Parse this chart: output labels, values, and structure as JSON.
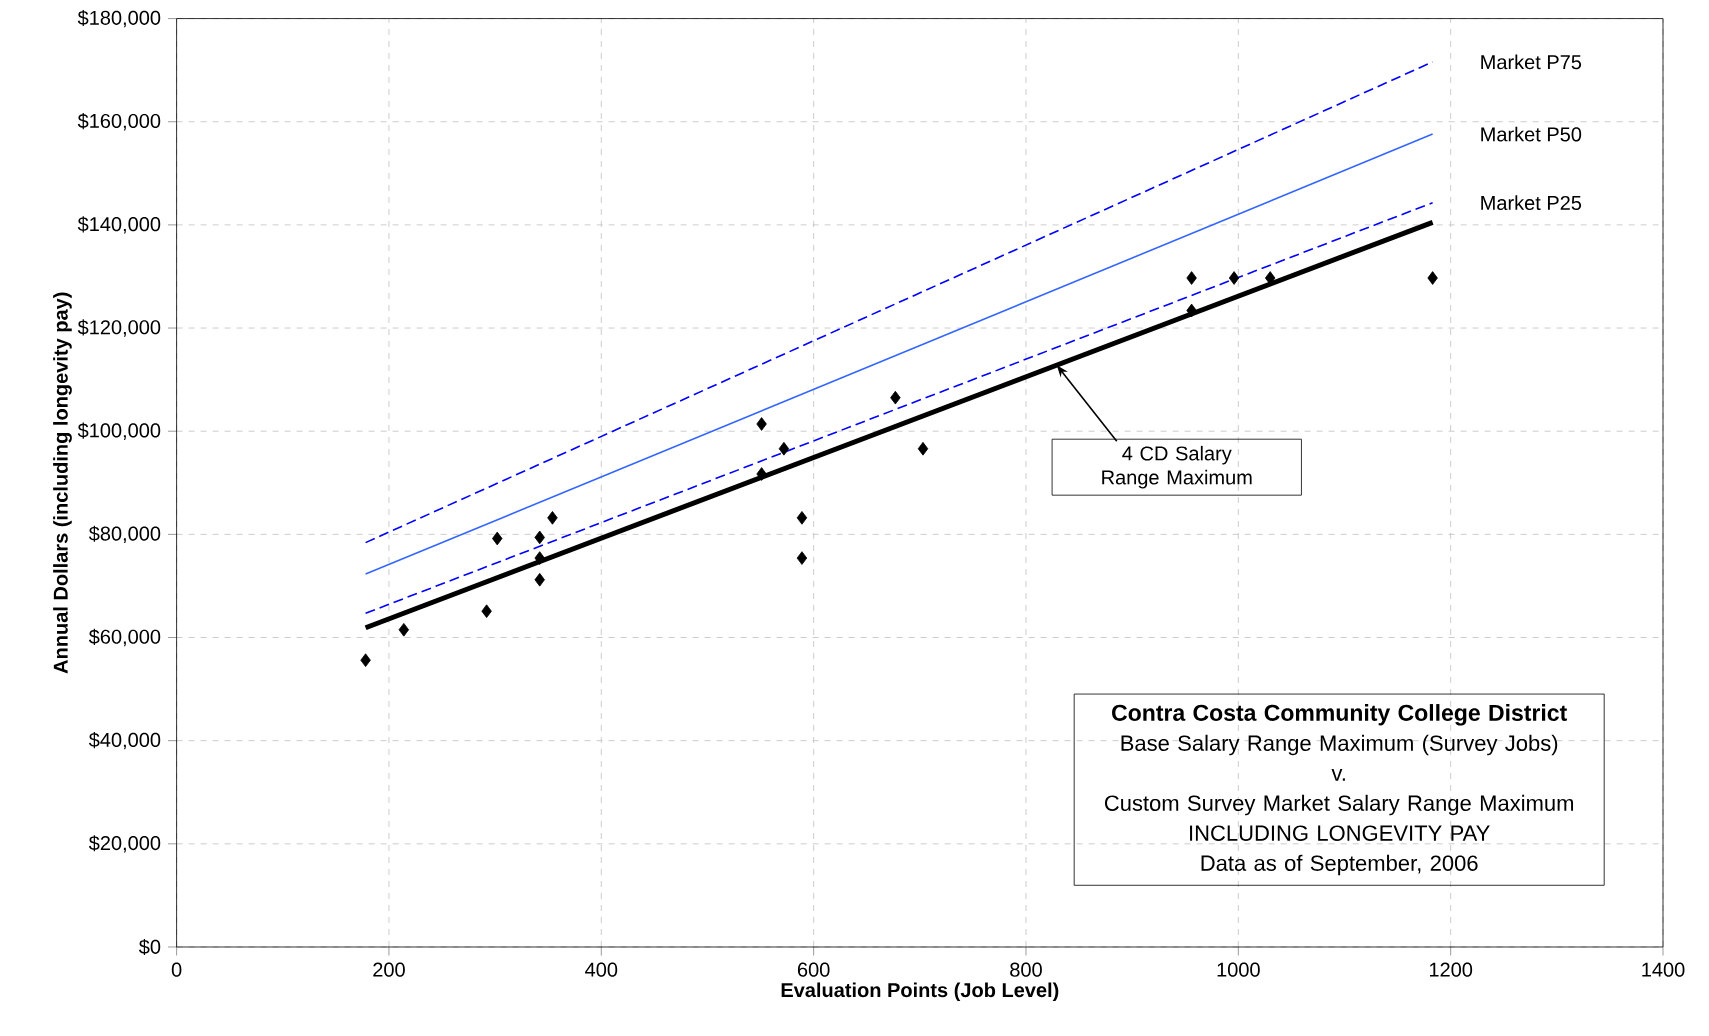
{
  "chart_data": {
    "type": "scatter",
    "title": "Contra Costa Community College District",
    "subtitle": "Base Salary Range Maximum (Survey Jobs)",
    "xlabel": "Evaluation Points (Job Level)",
    "ylabel": "Annual Dollars (including longevity pay)",
    "xlim": [
      0,
      1400
    ],
    "xticks": [
      0,
      200,
      400,
      600,
      800,
      1000,
      1200,
      1400
    ],
    "ylim": [
      0,
      180000
    ],
    "yticks": [
      {
        "value": 0,
        "label": "$0"
      },
      {
        "value": 20000,
        "label": "$20,000"
      },
      {
        "value": 40000,
        "label": "$40,000"
      },
      {
        "value": 60000,
        "label": "$60,000"
      },
      {
        "value": 80000,
        "label": "$80,000"
      },
      {
        "value": 100000,
        "label": "$100,000"
      },
      {
        "value": 120000,
        "label": "$120,000"
      },
      {
        "value": 140000,
        "label": "$140,000"
      },
      {
        "value": 160000,
        "label": "$160,000"
      },
      {
        "value": 180000,
        "label": "$180,000"
      }
    ],
    "grid": true,
    "series": [
      {
        "type": "line",
        "name": "Market P75",
        "color": "#0000ff",
        "line_style": "dashed",
        "marker": "none",
        "x": [
          178,
          1183
        ],
        "values": [
          78400,
          171600
        ]
      },
      {
        "type": "line",
        "name": "Market P50",
        "color": "#3366ff",
        "line_style": "solid",
        "marker": "none",
        "x": [
          178,
          1183
        ],
        "values": [
          72300,
          157600
        ]
      },
      {
        "type": "line",
        "name": "Market P25",
        "color": "#0000ff",
        "line_style": "dashed",
        "marker": "none",
        "x": [
          178,
          1183
        ],
        "values": [
          64700,
          144300
        ]
      },
      {
        "type": "line",
        "color": "#000000",
        "line_style": "solid",
        "marker": "none",
        "x": [
          178,
          1183
        ],
        "values": [
          61900,
          140500
        ]
      },
      {
        "color": "#000000",
        "marker": "diamond",
        "x": [
          178,
          214,
          292,
          302,
          342,
          342,
          342,
          354,
          551,
          551,
          572,
          589,
          589,
          677,
          703,
          956,
          956,
          996,
          1030,
          1183
        ],
        "values": [
          55600,
          61500,
          65100,
          79200,
          79400,
          75400,
          71200,
          83200,
          101400,
          91700,
          96600,
          83200,
          75400,
          106500,
          96600,
          129700,
          123400,
          129700,
          129700,
          129700
        ]
      }
    ],
    "legend": false,
    "annotations": [
      {
        "text": "4 CD Salary Range Maximum",
        "x": 829,
        "y": 112800
      },
      "v.",
      "Custom Survey Market Salary Range Maximum",
      "INCLUDING LONGEVITY PAY",
      "Data as of September, 2006"
    ]
  }
}
